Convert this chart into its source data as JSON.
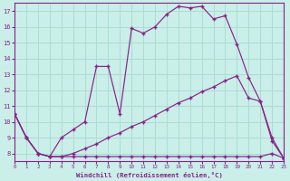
{
  "xlabel": "Windchill (Refroidissement éolien,°C)",
  "bg_color": "#caeee8",
  "line_color": "#882288",
  "grid_color": "#aaddd4",
  "series_top_y": [
    10.5,
    9.0,
    8.0,
    7.8,
    9.0,
    9.5,
    10.0,
    13.5,
    13.5,
    10.5,
    15.9,
    15.6,
    16.0,
    16.8,
    17.3,
    17.2,
    17.3,
    16.5,
    16.7,
    14.9,
    12.8,
    11.3,
    8.8,
    7.7
  ],
  "series_mid_y": [
    10.5,
    9.0,
    8.0,
    7.8,
    7.8,
    8.0,
    8.3,
    8.6,
    9.0,
    9.3,
    9.7,
    10.0,
    10.4,
    10.8,
    11.2,
    11.5,
    11.9,
    12.2,
    12.6,
    12.9,
    11.5,
    11.3,
    9.0,
    7.7
  ],
  "series_bot_y": [
    10.5,
    9.0,
    8.0,
    7.8,
    7.8,
    7.8,
    7.8,
    7.8,
    7.8,
    7.8,
    7.8,
    7.8,
    7.8,
    7.8,
    7.8,
    7.8,
    7.8,
    7.8,
    7.8,
    7.8,
    7.8,
    7.8,
    8.0,
    7.7
  ],
  "x": [
    0,
    1,
    2,
    3,
    4,
    5,
    6,
    7,
    8,
    9,
    10,
    11,
    12,
    13,
    14,
    15,
    16,
    17,
    18,
    19,
    20,
    21,
    22,
    23
  ],
  "ylim": [
    7.5,
    17.5
  ],
  "xlim": [
    0,
    23
  ],
  "yticks": [
    8,
    9,
    10,
    11,
    12,
    13,
    14,
    15,
    16,
    17
  ],
  "xticks": [
    0,
    1,
    2,
    3,
    4,
    5,
    6,
    7,
    8,
    9,
    10,
    11,
    12,
    13,
    14,
    15,
    16,
    17,
    18,
    19,
    20,
    21,
    22,
    23
  ]
}
